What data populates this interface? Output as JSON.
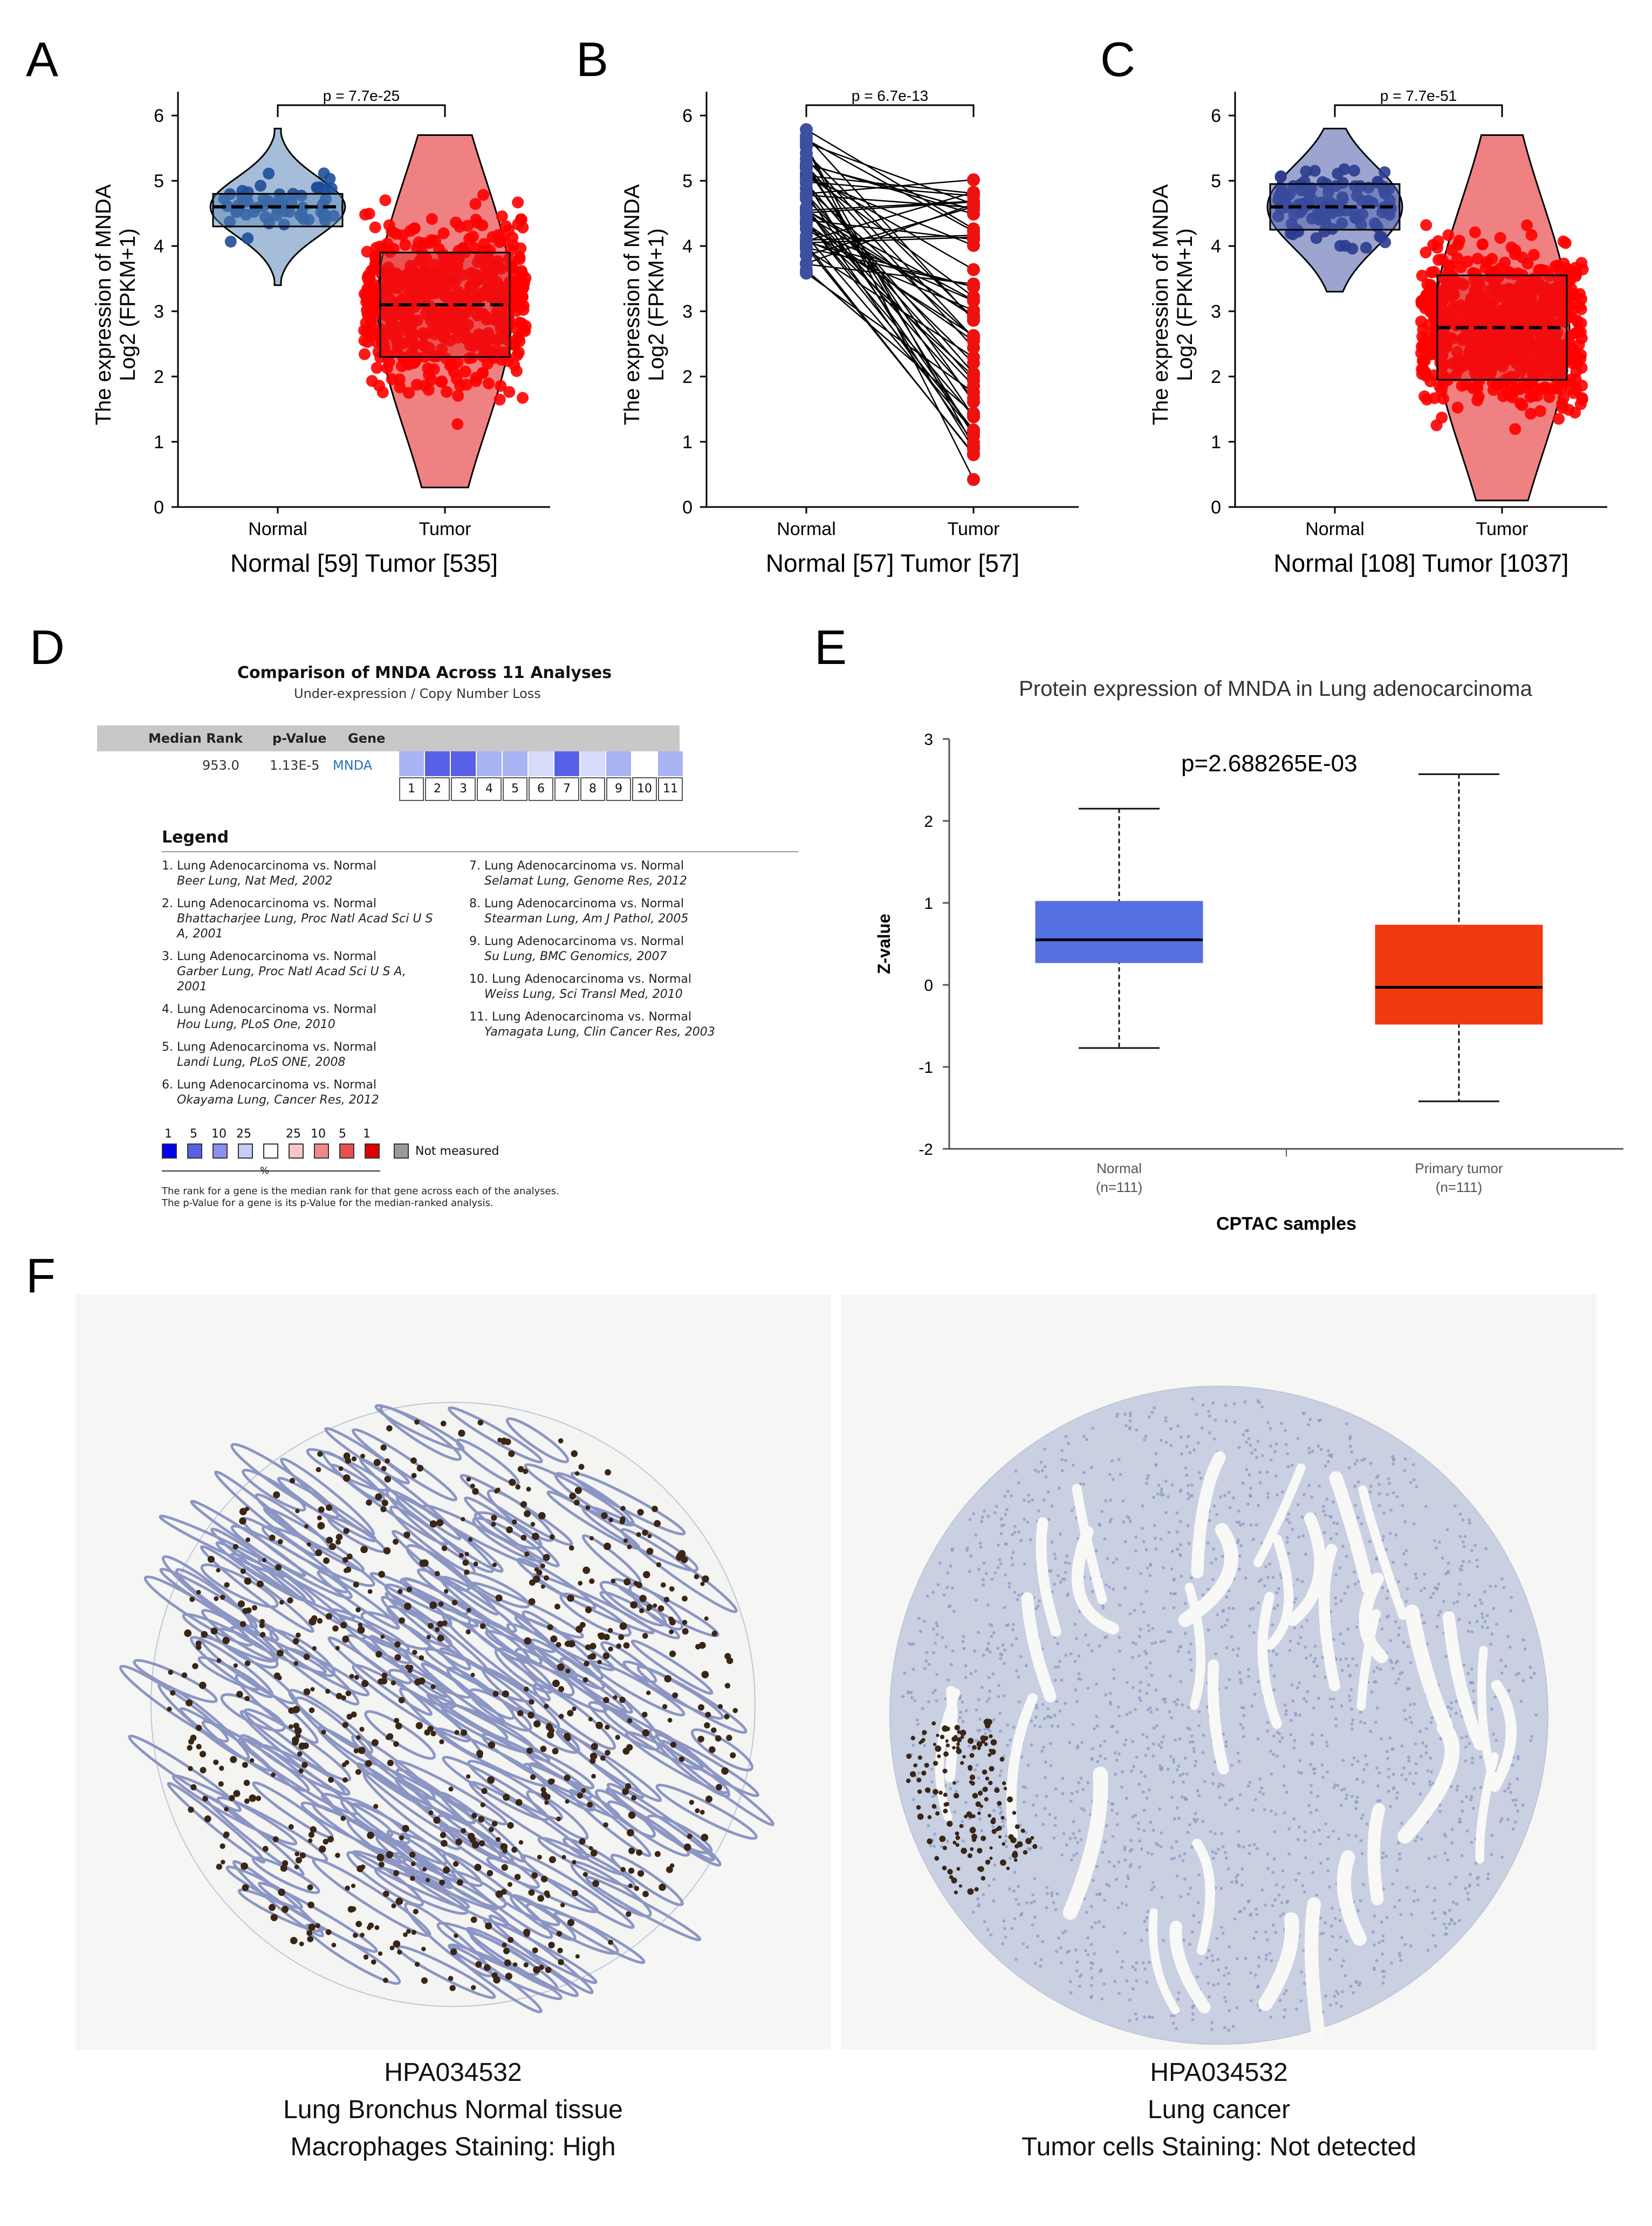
{
  "panel_labels": [
    "A",
    "B",
    "C",
    "D",
    "E",
    "F"
  ],
  "chart_data": [
    {
      "id": "A",
      "type": "violin-box",
      "ylabel_line1": "The expression of MNDA",
      "ylabel_line2": "Log2 (FPKM+1)",
      "categories": [
        "Normal",
        "Tumor"
      ],
      "xlabel": "Normal [59] Tumor [535]",
      "pvalue": "p = 7.7e-25",
      "yticks": [
        "0",
        "1",
        "2",
        "3",
        "4",
        "5",
        "6"
      ],
      "ylim": [
        0,
        6.2
      ],
      "groups": [
        {
          "name": "Normal",
          "n": 59,
          "median": 4.6,
          "q1": 4.3,
          "q3": 4.8,
          "min": 3.4,
          "max": 5.8,
          "color": "#1f4e99",
          "fill": "#5b87b8"
        },
        {
          "name": "Tumor",
          "n": 535,
          "median": 3.1,
          "q1": 2.3,
          "q3": 3.9,
          "min": 0.3,
          "max": 5.7,
          "color": "#ff0000",
          "fill": "#e31a1c"
        }
      ]
    },
    {
      "id": "B",
      "type": "paired",
      "ylabel_line1": "The expression of MNDA",
      "ylabel_line2": "Log2 (FPKM+1)",
      "categories": [
        "Normal",
        "Tumor"
      ],
      "xlabel": "Normal [57] Tumor [57]",
      "pvalue": "p = 6.7e-13",
      "yticks": [
        "0",
        "1",
        "2",
        "3",
        "4",
        "5",
        "6"
      ],
      "ylim": [
        0,
        6.2
      ],
      "pairs_n": 57,
      "normal_range": [
        3.4,
        5.8
      ],
      "tumor_range": [
        0.4,
        5.1
      ]
    },
    {
      "id": "C",
      "type": "violin-box",
      "ylabel_line1": "The expression of MNDA",
      "ylabel_line2": "Log2 (FPKM+1)",
      "categories": [
        "Normal",
        "Tumor"
      ],
      "xlabel": "Normal [108] Tumor [1037]",
      "pvalue": "p = 7.7e-51",
      "yticks": [
        "0",
        "1",
        "2",
        "3",
        "4",
        "5",
        "6"
      ],
      "ylim": [
        0,
        6.2
      ],
      "groups": [
        {
          "name": "Normal",
          "n": 108,
          "median": 4.6,
          "q1": 4.25,
          "q3": 4.95,
          "min": 3.3,
          "max": 5.8,
          "color": "#2b3d8f",
          "fill": "#4a5aa8"
        },
        {
          "name": "Tumor",
          "n": 1037,
          "median": 2.75,
          "q1": 1.95,
          "q3": 3.55,
          "min": 0.1,
          "max": 5.7,
          "color": "#ff0000",
          "fill": "#e31a1c"
        }
      ]
    },
    {
      "id": "E",
      "type": "box",
      "title": "Protein expression of MNDA in Lung adenocarcinoma",
      "ylabel": "Z-value",
      "xlabel": "CPTAC samples",
      "pvalue": "p=2.688265E-03",
      "yticks": [
        "-2",
        "-1",
        "0",
        "1",
        "2",
        "3"
      ],
      "ylim": [
        -2,
        3
      ],
      "groups": [
        {
          "name": "Normal",
          "n_label": "(n=111)",
          "median": 0.55,
          "q1": 0.27,
          "q3": 1.02,
          "min": -0.77,
          "max": 2.15,
          "color": "#5570e0"
        },
        {
          "name": "Primary tumor",
          "n_label": "(n=111)",
          "median": -0.03,
          "q1": -0.48,
          "q3": 0.73,
          "min": -1.42,
          "max": 2.57,
          "color": "#f0390f"
        }
      ]
    }
  ],
  "oncomine": {
    "title": "Comparison of MNDA Across 11 Analyses",
    "subtitle": "Under-expression / Copy Number Loss",
    "headers": {
      "rank": "Median Rank",
      "pvalue": "p-Value",
      "gene": "Gene"
    },
    "row": {
      "rank": "953.0",
      "pvalue": "1.13E-5",
      "gene": "MNDA"
    },
    "cell_colors": [
      "#a8b4f4",
      "#5860e8",
      "#5860e8",
      "#a8b4f4",
      "#a8b4f4",
      "#d6dcfa",
      "#5860e8",
      "#d6dcfa",
      "#a8b4f4",
      "#ffffff",
      "#a8b4f4"
    ],
    "cell_numbers": [
      "1",
      "2",
      "3",
      "4",
      "5",
      "6",
      "7",
      "8",
      "9",
      "10",
      "11"
    ],
    "legend_title": "Legend",
    "legend_left": [
      {
        "line1": "1. Lung Adenocarcinoma vs. Normal",
        "line2": "Beer Lung, Nat Med, 2002",
        "line3": ""
      },
      {
        "line1": "2. Lung Adenocarcinoma vs. Normal",
        "line2": "Bhattacharjee Lung, Proc Natl Acad Sci U S",
        "line3": "A, 2001"
      },
      {
        "line1": "3. Lung Adenocarcinoma vs. Normal",
        "line2": "Garber Lung, Proc Natl Acad Sci U S A,",
        "line3": "2001"
      },
      {
        "line1": "4. Lung Adenocarcinoma vs. Normal",
        "line2": "Hou Lung, PLoS One, 2010",
        "line3": ""
      },
      {
        "line1": "5. Lung Adenocarcinoma vs. Normal",
        "line2": "Landi Lung, PLoS ONE, 2008",
        "line3": ""
      },
      {
        "line1": "6. Lung Adenocarcinoma vs. Normal",
        "line2": "Okayama Lung, Cancer Res, 2012",
        "line3": ""
      }
    ],
    "legend_right": [
      {
        "line1": "7. Lung Adenocarcinoma vs. Normal",
        "line2": "Selamat Lung, Genome Res, 2012",
        "line3": ""
      },
      {
        "line1": "8. Lung Adenocarcinoma vs. Normal",
        "line2": "Stearman Lung, Am J Pathol, 2005",
        "line3": ""
      },
      {
        "line1": "9. Lung Adenocarcinoma vs. Normal",
        "line2": "Su Lung, BMC Genomics, 2007",
        "line3": ""
      },
      {
        "line1": "10. Lung Adenocarcinoma vs. Normal",
        "line2": "Weiss Lung, Sci Transl Med, 2010",
        "line3": ""
      },
      {
        "line1": "11. Lung Adenocarcinoma vs. Normal",
        "line2": "Yamagata Lung, Clin Cancer Res, 2003",
        "line3": ""
      }
    ],
    "scale_labels": [
      "1",
      "5",
      "10",
      "25",
      "25",
      "10",
      "5",
      "1"
    ],
    "scale_colors": [
      "#0000ee",
      "#5860e8",
      "#8890f0",
      "#c8ccf8",
      "#ffffff",
      "#f8c8c8",
      "#f08888",
      "#e85050",
      "#e00000"
    ],
    "percent_label": "%",
    "not_measured": "Not measured",
    "footnote1": "The rank for a gene is the median rank for that gene across each of the analyses.",
    "footnote2": "The p-Value for a gene is its p-Value for the median-ranked analysis."
  },
  "tissue": [
    {
      "id": "HPA034532",
      "line2": "Lung  Bronchus Normal tissue",
      "line3": "Macrophages Staining: High"
    },
    {
      "id": "HPA034532",
      "line2": "Lung cancer",
      "line3": "Tumor cells Staining: Not detected"
    }
  ]
}
